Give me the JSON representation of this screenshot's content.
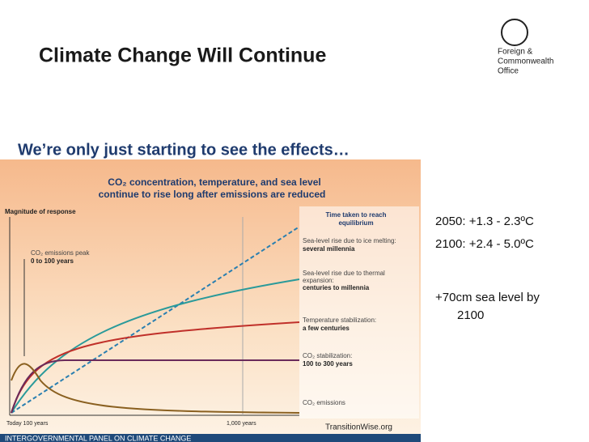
{
  "header": {
    "title": "Climate Change Will Continue",
    "logo": [
      "Foreign &",
      "Commonwealth",
      "Office"
    ]
  },
  "subtitle": "We’re only just starting to see the effects…",
  "figure": {
    "title": [
      "CO₂ concentration, temperature, and sea level",
      "continue to rise long after emissions are reduced"
    ],
    "y_label": "Magnitude of response",
    "legend_heading": [
      "Time taken to reach",
      "equilibrium"
    ],
    "annotations": [
      {
        "label": "Sea-level rise due to ice melting:",
        "detail": "several millennia"
      },
      {
        "label": "Sea-level rise due to thermal",
        "label2": "expansion:",
        "detail": "centuries to millennia"
      },
      {
        "label": "Temperature stabilization:",
        "detail": "a few centuries"
      },
      {
        "label": "CO₂ stabilization:",
        "detail": "100 to 300 years"
      },
      {
        "label": "CO₂ emissions"
      }
    ],
    "peak_note": [
      "CO₂ emissions peak",
      "0 to 100 years"
    ],
    "x_labels": [
      "Today 100 years",
      "1,000  years"
    ],
    "credit": "TransitionWise.org",
    "footer": "INTERGOVERNMENTAL PANEL ON CLIMATE CHANGE"
  },
  "bullets": [
    "2050: +1.3 - 2.3ºC",
    "2100: +2.4 - 5.0ºC",
    "+70cm sea level by",
    "2100"
  ]
}
